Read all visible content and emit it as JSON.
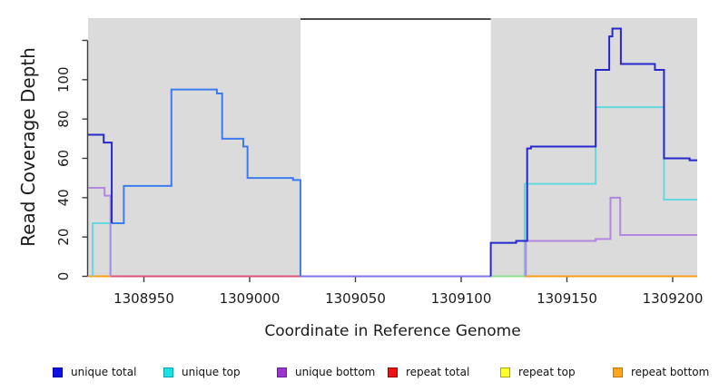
{
  "chart_data": {
    "type": "line",
    "subtype": "step-coverage-plot",
    "title": "",
    "xlabel": "Coordinate in Reference Genome",
    "ylabel": "Read Coverage Depth",
    "xlim": [
      1308923.6,
      1309211.6
    ],
    "ylim": [
      0,
      131.3
    ],
    "grid": false,
    "x_ticks": [
      {
        "value": 1308950,
        "label": "1308950"
      },
      {
        "value": 1309000,
        "label": "1309000"
      },
      {
        "value": 1309050,
        "label": "1309050"
      },
      {
        "value": 1309100,
        "label": "1309100"
      },
      {
        "value": 1309150,
        "label": "1309150"
      },
      {
        "value": 1309200,
        "label": "1309200"
      }
    ],
    "y_ticks": [
      {
        "value": 0,
        "label": "0"
      },
      {
        "value": 20,
        "label": "20"
      },
      {
        "value": 40,
        "label": "40"
      },
      {
        "value": 60,
        "label": "60"
      },
      {
        "value": 80,
        "label": "80"
      },
      {
        "value": 100,
        "label": "100"
      },
      {
        "value": 120,
        "label": ""
      }
    ],
    "background_regions": [
      {
        "name": "repeat-region-left",
        "x0": 1308923.6,
        "x1": 1309024.0,
        "color": "#dbdbdb"
      },
      {
        "name": "repeat-region-right",
        "x0": 1309114.0,
        "x1": 1309211.6,
        "color": "#dbdbdb"
      }
    ],
    "box_top_segment": {
      "x0": 1309024.0,
      "x1": 1309114.0,
      "color": "#4d4d4d"
    },
    "series": [
      {
        "name": "repeat-total-zero",
        "color": "#dc5377",
        "points": [
          [
            1308934.2,
            0
          ]
        ],
        "end": 1309024.0
      },
      {
        "name": "repeat-top-zero",
        "color": "#8fdf92",
        "points": [
          [
            1309114.0,
            0
          ]
        ],
        "end": 1309130.0
      },
      {
        "name": "repeat-bottom-left",
        "color": "#ff9e19",
        "points": [
          [
            1308923.6,
            0
          ]
        ],
        "end": 1308934.2
      },
      {
        "name": "repeat-bottom-right",
        "color": "#ff9e19",
        "points": [
          [
            1309130.0,
            0
          ]
        ],
        "end": 1309211.6
      },
      {
        "name": "unique-total-gap-zero",
        "color": "#7b74ee",
        "points": [
          [
            1309024.0,
            0
          ]
        ],
        "end": 1309114.0
      },
      {
        "name": "unique-top-left",
        "color": "#63d8dd",
        "start_from": 0,
        "points": [
          [
            1308925.8,
            27
          ],
          [
            1308934.2,
            0
          ]
        ],
        "end": 1308934.2
      },
      {
        "name": "unique-top-right",
        "color": "#63d8dd",
        "start_from": 0,
        "points": [
          [
            1309130.0,
            47
          ],
          [
            1309163.6,
            86
          ],
          [
            1309195.9,
            39
          ]
        ],
        "end": 1309211.6
      },
      {
        "name": "unique-bottom-left",
        "color": "#b287e0",
        "points": [
          [
            1308923.6,
            45
          ],
          [
            1308931.4,
            41
          ],
          [
            1308934.2,
            0
          ]
        ],
        "end": 1308934.2
      },
      {
        "name": "unique-bottom-right",
        "color": "#b287e0",
        "start_from": 0,
        "points": [
          [
            1309130.6,
            18
          ],
          [
            1309163.6,
            19
          ],
          [
            1309170.6,
            40
          ],
          [
            1309175.2,
            21
          ]
        ],
        "end": 1309211.6
      },
      {
        "name": "unique-total-merged",
        "color": "#3d7cee",
        "points": [
          [
            1308934.8,
            27
          ],
          [
            1308940.5,
            46
          ],
          [
            1308963.0,
            95
          ],
          [
            1308984.5,
            93
          ],
          [
            1308987.0,
            70
          ],
          [
            1308997.0,
            66
          ],
          [
            1308999.0,
            50
          ],
          [
            1309020.5,
            49
          ],
          [
            1309024.0,
            0
          ]
        ],
        "end": 1309024.0
      },
      {
        "name": "unique-total-left",
        "color": "#2727ce",
        "points": [
          [
            1308923.6,
            72
          ],
          [
            1308931.0,
            68
          ],
          [
            1308934.8,
            27
          ]
        ],
        "end": 1308934.8
      },
      {
        "name": "unique-total-right",
        "color": "#2727ce",
        "start_from": 0,
        "points": [
          [
            1309114.0,
            17
          ],
          [
            1309126.0,
            18
          ],
          [
            1309131.2,
            65
          ],
          [
            1309133.0,
            66
          ],
          [
            1309163.6,
            105
          ],
          [
            1309170.0,
            122
          ],
          [
            1309171.5,
            126
          ],
          [
            1309175.5,
            108
          ],
          [
            1309191.6,
            105
          ],
          [
            1309195.9,
            60
          ],
          [
            1309208.0,
            59
          ]
        ],
        "end": 1309211.6
      }
    ],
    "legend": [
      {
        "name": "unique-total",
        "label": "unique total",
        "color": "#0f0fe8",
        "border": "#0000a8"
      },
      {
        "name": "unique-top",
        "label": "unique top",
        "color": "#19e2e2",
        "border": "#0e9fb0"
      },
      {
        "name": "unique-bottom",
        "label": "unique bottom",
        "color": "#9a35d0",
        "border": "#66209c"
      },
      {
        "name": "repeat-total",
        "label": "repeat total",
        "color": "#ee1212",
        "border": "#990000"
      },
      {
        "name": "repeat-top",
        "label": "repeat top",
        "color": "#ffff2e",
        "border": "#a8a800"
      },
      {
        "name": "repeat-bottom",
        "label": "repeat bottom",
        "color": "#ffa51e",
        "border": "#c27400"
      }
    ],
    "legend_position": "bottom"
  }
}
